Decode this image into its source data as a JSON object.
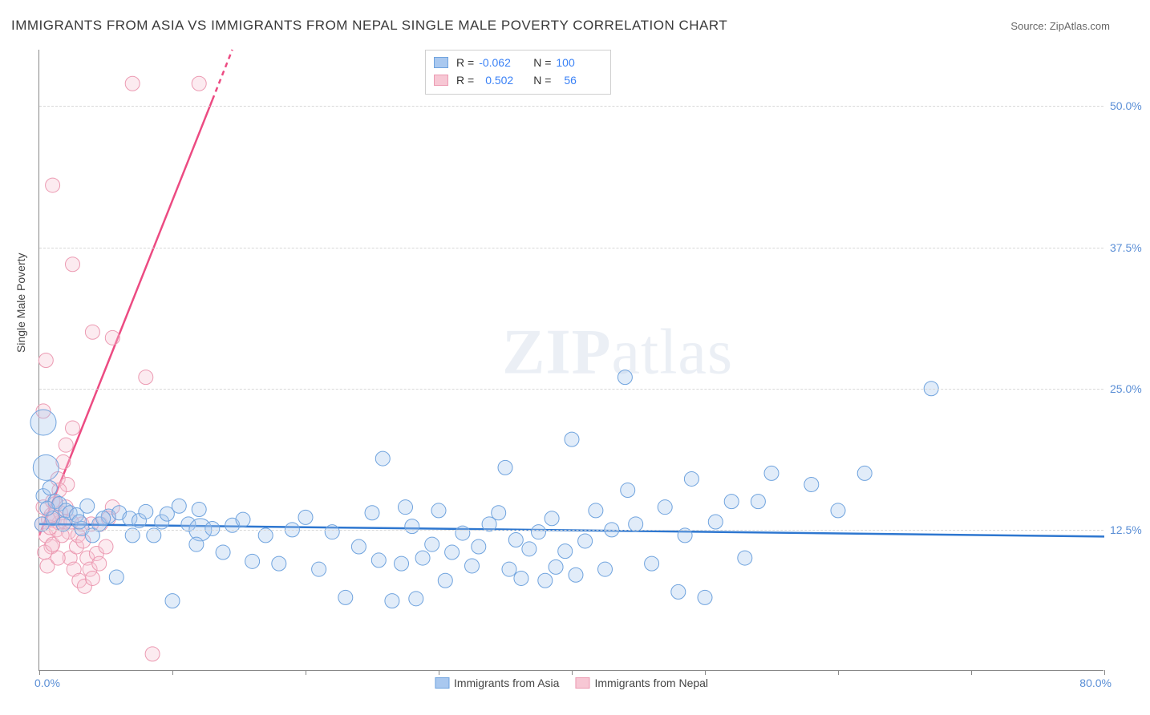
{
  "title": "IMMIGRANTS FROM ASIA VS IMMIGRANTS FROM NEPAL SINGLE MALE POVERTY CORRELATION CHART",
  "source_label": "Source:",
  "source_name": "ZipAtlas.com",
  "ylabel": "Single Male Poverty",
  "watermark_a": "ZIP",
  "watermark_b": "atlas",
  "chart": {
    "type": "scatter",
    "xlim": [
      0,
      80
    ],
    "ylim": [
      0,
      55
    ],
    "y_ticks": [
      12.5,
      25.0,
      37.5,
      50.0
    ],
    "y_tick_labels": [
      "12.5%",
      "25.0%",
      "37.5%",
      "50.0%"
    ],
    "x_ticks": [
      0,
      10,
      20,
      30,
      40,
      50,
      60,
      70,
      80
    ],
    "x_min_label": "0.0%",
    "x_max_label": "80.0%",
    "grid_color": "#d8d8d8",
    "background_color": "#ffffff",
    "axis_color": "#888888",
    "label_color": "#5b8fd6",
    "marker_radius": 9,
    "marker_radius_large": 16,
    "marker_opacity": 0.35,
    "series": [
      {
        "name": "Immigrants from Asia",
        "color_fill": "#a9c8ef",
        "color_stroke": "#6fa3de",
        "line_color": "#2e77d0",
        "line_width": 2.5,
        "R": "-0.062",
        "N": "100",
        "trend": {
          "x1": 0,
          "y1": 13.0,
          "x2": 80,
          "y2": 11.9
        },
        "points": [
          [
            0.3,
            22.0,
            16
          ],
          [
            0.5,
            18.0,
            16
          ],
          [
            0.2,
            13.0,
            9
          ],
          [
            0.3,
            15.5,
            9
          ],
          [
            0.8,
            16.2,
            9
          ],
          [
            1.2,
            15.0,
            9
          ],
          [
            1.5,
            14.8,
            9
          ],
          [
            2.0,
            14.2,
            9
          ],
          [
            2.3,
            14.0,
            9
          ],
          [
            2.8,
            13.8,
            9
          ],
          [
            3.2,
            12.6,
            9
          ],
          [
            3.6,
            14.6,
            9
          ],
          [
            4.0,
            12.0,
            9
          ],
          [
            4.5,
            13.0,
            9
          ],
          [
            5.2,
            13.7,
            9
          ],
          [
            5.8,
            8.3,
            9
          ],
          [
            6.0,
            14.0,
            9
          ],
          [
            6.8,
            13.5,
            9
          ],
          [
            7.5,
            13.3,
            9
          ],
          [
            8.0,
            14.1,
            9
          ],
          [
            8.6,
            12.0,
            9
          ],
          [
            9.2,
            13.2,
            9
          ],
          [
            10.0,
            6.2,
            9
          ],
          [
            10.5,
            14.6,
            9
          ],
          [
            11.2,
            13.0,
            9
          ],
          [
            12.0,
            14.3,
            9
          ],
          [
            12.1,
            12.5,
            14
          ],
          [
            13.0,
            12.6,
            9
          ],
          [
            13.8,
            10.5,
            9
          ],
          [
            14.5,
            12.9,
            9
          ],
          [
            15.3,
            13.4,
            9
          ],
          [
            16.0,
            9.7,
            9
          ],
          [
            17.0,
            12.0,
            9
          ],
          [
            18.0,
            9.5,
            9
          ],
          [
            19.0,
            12.5,
            9
          ],
          [
            20.0,
            13.6,
            9
          ],
          [
            21.0,
            9.0,
            9
          ],
          [
            22.0,
            12.3,
            9
          ],
          [
            23.0,
            6.5,
            9
          ],
          [
            24.0,
            11.0,
            9
          ],
          [
            25.0,
            14.0,
            9
          ],
          [
            25.5,
            9.8,
            9
          ],
          [
            25.8,
            18.8,
            9
          ],
          [
            26.5,
            6.2,
            9
          ],
          [
            27.2,
            9.5,
            9
          ],
          [
            27.5,
            14.5,
            9
          ],
          [
            28.0,
            12.8,
            9
          ],
          [
            28.3,
            6.4,
            9
          ],
          [
            28.8,
            10.0,
            9
          ],
          [
            29.5,
            11.2,
            9
          ],
          [
            30.0,
            14.2,
            9
          ],
          [
            30.5,
            8.0,
            9
          ],
          [
            31.0,
            10.5,
            9
          ],
          [
            31.8,
            12.2,
            9
          ],
          [
            32.5,
            9.3,
            9
          ],
          [
            33.0,
            11.0,
            9
          ],
          [
            33.8,
            13.0,
            9
          ],
          [
            34.5,
            14.0,
            9
          ],
          [
            35.0,
            18.0,
            9
          ],
          [
            35.3,
            9.0,
            9
          ],
          [
            35.8,
            11.6,
            9
          ],
          [
            36.2,
            8.2,
            9
          ],
          [
            36.8,
            10.8,
            9
          ],
          [
            37.5,
            12.3,
            9
          ],
          [
            38.0,
            8.0,
            9
          ],
          [
            38.5,
            13.5,
            9
          ],
          [
            38.8,
            9.2,
            9
          ],
          [
            39.5,
            10.6,
            9
          ],
          [
            40.0,
            20.5,
            9
          ],
          [
            40.3,
            8.5,
            9
          ],
          [
            41.0,
            11.5,
            9
          ],
          [
            41.8,
            14.2,
            9
          ],
          [
            42.5,
            9.0,
            9
          ],
          [
            43.0,
            12.5,
            9
          ],
          [
            44.0,
            26.0,
            9
          ],
          [
            44.2,
            16.0,
            9
          ],
          [
            44.8,
            13.0,
            9
          ],
          [
            46.0,
            9.5,
            9
          ],
          [
            47.0,
            14.5,
            9
          ],
          [
            48.0,
            7.0,
            9
          ],
          [
            48.5,
            12.0,
            9
          ],
          [
            49.0,
            17.0,
            9
          ],
          [
            50.0,
            6.5,
            9
          ],
          [
            50.8,
            13.2,
            9
          ],
          [
            52.0,
            15.0,
            9
          ],
          [
            53.0,
            10.0,
            9
          ],
          [
            54.0,
            15.0,
            9
          ],
          [
            55.0,
            17.5,
            9
          ],
          [
            58.0,
            16.5,
            9
          ],
          [
            60.0,
            14.2,
            9
          ],
          [
            62.0,
            17.5,
            9
          ],
          [
            67.0,
            25.0,
            9
          ],
          [
            1.0,
            13.5,
            9
          ],
          [
            1.8,
            13.0,
            9
          ],
          [
            3.0,
            13.2,
            9
          ],
          [
            4.8,
            13.5,
            9
          ],
          [
            7.0,
            12.0,
            9
          ],
          [
            9.6,
            13.9,
            9
          ],
          [
            11.8,
            11.2,
            9
          ],
          [
            0.6,
            14.4,
            9
          ]
        ]
      },
      {
        "name": "Immigrants from Nepal",
        "color_fill": "#f7c7d4",
        "color_stroke": "#ec9ab2",
        "line_color": "#ec4b82",
        "line_width": 2.5,
        "R": "0.502",
        "N": "56",
        "trend": {
          "x1": 0,
          "y1": 12.0,
          "x2": 14.5,
          "y2": 55.0
        },
        "trend_dash_from_x": 13.0,
        "points": [
          [
            0.2,
            13.0,
            9
          ],
          [
            0.3,
            14.5,
            9
          ],
          [
            0.5,
            12.0,
            9
          ],
          [
            0.7,
            13.4,
            9
          ],
          [
            0.9,
            11.0,
            9
          ],
          [
            1.0,
            15.0,
            9
          ],
          [
            1.1,
            13.3,
            9
          ],
          [
            1.3,
            12.5,
            9
          ],
          [
            1.4,
            17.0,
            9
          ],
          [
            1.5,
            13.1,
            9
          ],
          [
            1.6,
            14.0,
            9
          ],
          [
            1.8,
            18.5,
            9
          ],
          [
            1.9,
            13.2,
            9
          ],
          [
            2.0,
            20.0,
            9
          ],
          [
            2.1,
            16.5,
            9
          ],
          [
            2.2,
            12.3,
            9
          ],
          [
            2.3,
            10.0,
            9
          ],
          [
            2.5,
            21.5,
            9
          ],
          [
            2.6,
            9.0,
            9
          ],
          [
            2.8,
            11.0,
            9
          ],
          [
            3.0,
            8.0,
            9
          ],
          [
            3.2,
            13.0,
            9
          ],
          [
            3.4,
            7.5,
            9
          ],
          [
            3.6,
            10.0,
            9
          ],
          [
            3.8,
            9.0,
            9
          ],
          [
            4.0,
            8.2,
            9
          ],
          [
            4.3,
            10.4,
            9
          ],
          [
            4.6,
            13.0,
            9
          ],
          [
            5.0,
            11.0,
            9
          ],
          [
            5.5,
            14.5,
            9
          ],
          [
            0.3,
            23.0,
            9
          ],
          [
            0.5,
            27.5,
            9
          ],
          [
            1.0,
            43.0,
            9
          ],
          [
            2.5,
            36.0,
            9
          ],
          [
            4.0,
            30.0,
            9
          ],
          [
            5.5,
            29.5,
            9
          ],
          [
            7.0,
            52.0,
            9
          ],
          [
            8.0,
            26.0,
            9
          ],
          [
            12.0,
            52.0,
            9
          ],
          [
            8.5,
            1.5,
            9
          ],
          [
            0.4,
            10.5,
            9
          ],
          [
            0.6,
            9.3,
            9
          ],
          [
            0.8,
            12.7,
            9
          ],
          [
            1.0,
            11.2,
            9
          ],
          [
            1.2,
            14.8,
            9
          ],
          [
            1.4,
            10.0,
            9
          ],
          [
            1.7,
            12.0,
            9
          ],
          [
            2.0,
            14.5,
            9
          ],
          [
            2.4,
            13.2,
            9
          ],
          [
            2.9,
            12.0,
            9
          ],
          [
            3.3,
            11.5,
            9
          ],
          [
            3.9,
            13.0,
            9
          ],
          [
            4.5,
            9.5,
            9
          ],
          [
            5.2,
            13.5,
            9
          ],
          [
            1.5,
            16.0,
            9
          ],
          [
            0.9,
            13.8,
            9
          ]
        ]
      }
    ],
    "legend_bottom": [
      {
        "label": "Immigrants from Asia",
        "fill": "#a9c8ef",
        "stroke": "#6fa3de"
      },
      {
        "label": "Immigrants from Nepal",
        "fill": "#f7c7d4",
        "stroke": "#ec9ab2"
      }
    ]
  }
}
